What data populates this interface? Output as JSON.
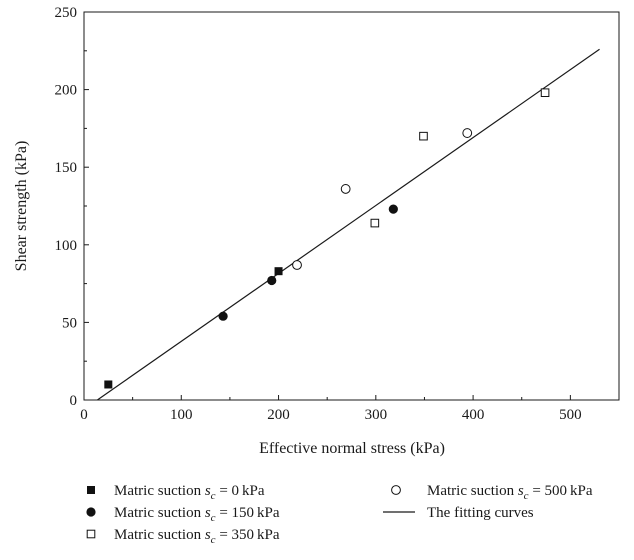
{
  "chart_data": {
    "type": "scatter",
    "xlabel": "Effective normal stress (kPa)",
    "ylabel": "Shear strength (kPa)",
    "xlim": [
      0,
      550
    ],
    "ylim": [
      0,
      250
    ],
    "xticks": [
      0,
      100,
      200,
      300,
      400,
      500
    ],
    "yticks": [
      0,
      50,
      100,
      150,
      200,
      250
    ],
    "x_tick_labels": [
      "0",
      "100",
      "200",
      "300",
      "400",
      "500"
    ],
    "y_tick_labels": [
      "0",
      "50",
      "100",
      "150",
      "200",
      "250"
    ],
    "series": [
      {
        "name_prefix": "Matric suction ",
        "name_var": "s",
        "name_sub": "c",
        "name_value": " = 0 kPa",
        "marker": "filled-square",
        "points": [
          [
            25,
            10
          ],
          [
            200,
            83
          ]
        ]
      },
      {
        "name_prefix": "Matric suction ",
        "name_var": "s",
        "name_sub": "c",
        "name_value": " = 150 kPa",
        "marker": "filled-circle",
        "points": [
          [
            143,
            54
          ],
          [
            193,
            77
          ],
          [
            318,
            123
          ]
        ]
      },
      {
        "name_prefix": "Matric suction ",
        "name_var": "s",
        "name_sub": "c",
        "name_value": " = 350 kPa",
        "marker": "open-square",
        "points": [
          [
            299,
            114
          ],
          [
            349,
            170
          ],
          [
            474,
            198
          ]
        ]
      },
      {
        "name_prefix": "Matric suction ",
        "name_var": "s",
        "name_sub": "c",
        "name_value": " = 500 kPa",
        "marker": "open-circle",
        "points": [
          [
            219,
            87
          ],
          [
            269,
            136
          ],
          [
            394,
            172
          ]
        ]
      }
    ],
    "fit_line": {
      "name": "The fitting curves",
      "x": [
        0,
        530
      ],
      "y": [
        -6,
        226
      ]
    },
    "grid": false,
    "legend_position": "bottom"
  }
}
